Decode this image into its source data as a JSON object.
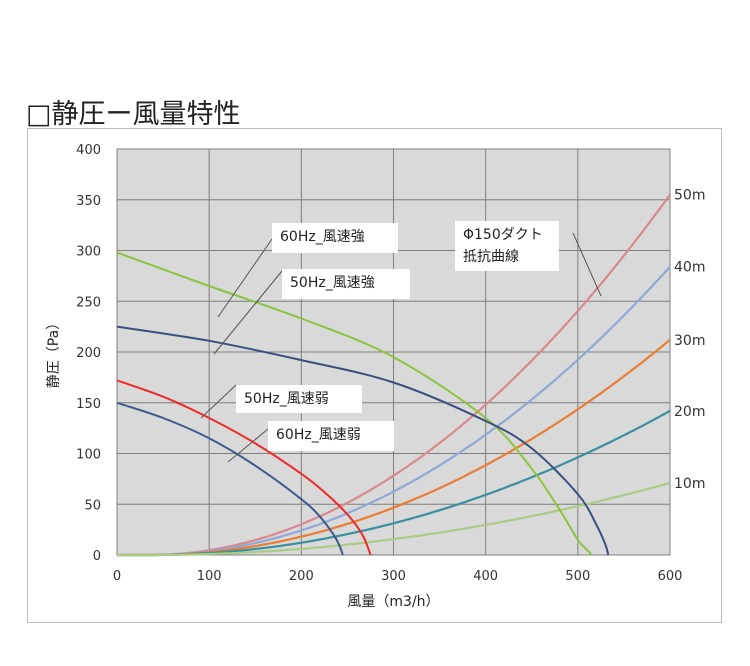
{
  "page_title": "□静圧ー風量特性",
  "chart_data": {
    "type": "line",
    "xlabel": "風量（m3/h）",
    "ylabel": "静圧（Pa）",
    "xlim": [
      0,
      600
    ],
    "ylim": [
      0,
      400
    ],
    "xticks": [
      0,
      100,
      200,
      300,
      400,
      500,
      600
    ],
    "yticks": [
      0,
      50,
      100,
      150,
      200,
      250,
      300,
      350,
      400
    ],
    "grid": true,
    "plot_background": "#d9d9d9",
    "series": [
      {
        "label": "60Hz_風速強",
        "color": "#8cc43f",
        "x": [
          0,
          100,
          200,
          300,
          400,
          450,
          480,
          500,
          510,
          515
        ],
        "y": [
          298,
          265,
          233,
          195,
          135,
          85,
          45,
          15,
          5,
          0
        ]
      },
      {
        "label": "50Hz_風速強",
        "color": "#3b4f80",
        "x": [
          0,
          100,
          200,
          300,
          400,
          450,
          500,
          520,
          530,
          533
        ],
        "y": [
          225,
          211,
          192,
          170,
          132,
          105,
          60,
          30,
          10,
          0
        ]
      },
      {
        "label": "50Hz_風速弱",
        "color": "#ee2a2a",
        "x": [
          0,
          50,
          100,
          150,
          200,
          225,
          250,
          265,
          272,
          275
        ],
        "y": [
          172,
          156,
          135,
          110,
          80,
          62,
          40,
          22,
          8,
          0
        ]
      },
      {
        "label": "60Hz_風速弱",
        "color": "#3c5a8e",
        "x": [
          0,
          50,
          100,
          150,
          200,
          220,
          235,
          242,
          245
        ],
        "y": [
          150,
          135,
          115,
          88,
          55,
          38,
          20,
          8,
          0
        ]
      }
    ],
    "duct_curves": {
      "label": "Φ150ダクト\n抵抗曲線",
      "start_x": 35,
      "curves": [
        {
          "label": "50m",
          "color": "#d9898c",
          "end_y": 355
        },
        {
          "label": "40m",
          "color": "#8fa8d6",
          "end_y": 284
        },
        {
          "label": "30m",
          "color": "#ea7d34",
          "end_y": 212
        },
        {
          "label": "20m",
          "color": "#3a8fa0",
          "end_y": 142
        },
        {
          "label": "10m",
          "color": "#a9cc85",
          "end_y": 71
        }
      ]
    },
    "annotations": [
      {
        "text": "60Hz_風速強"
      },
      {
        "text": "50Hz_風速強"
      },
      {
        "text": "50Hz_風速弱"
      },
      {
        "text": "60Hz_風速弱"
      },
      {
        "text": "Φ150ダクト\n抵抗曲線"
      }
    ]
  }
}
